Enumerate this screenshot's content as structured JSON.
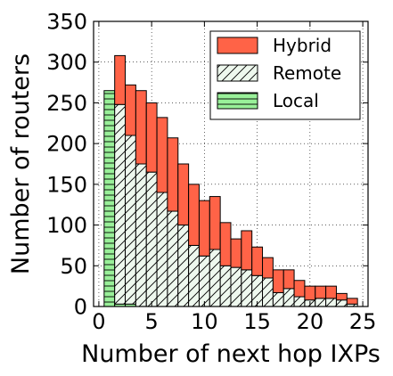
{
  "chart_data": {
    "type": "bar",
    "stacked": true,
    "xlabel": "Number of next hop IXPs",
    "ylabel": "Number of routers",
    "xlim": [
      -0.5,
      25.5
    ],
    "ylim": [
      0,
      350
    ],
    "xticks": [
      0,
      5,
      10,
      15,
      20,
      25
    ],
    "yticks": [
      0,
      50,
      100,
      150,
      200,
      250,
      300,
      350
    ],
    "grid": true,
    "legend_position": "top-right",
    "x": [
      1,
      2,
      3,
      4,
      5,
      6,
      7,
      8,
      9,
      10,
      11,
      12,
      13,
      14,
      15,
      16,
      17,
      18,
      19,
      20,
      21,
      22,
      23,
      24
    ],
    "series": [
      {
        "name": "Local",
        "color": "#99f099",
        "hatch": "horizontal",
        "values": [
          265,
          3,
          3,
          0,
          0,
          0,
          0,
          0,
          0,
          0,
          0,
          0,
          0,
          0,
          0,
          0,
          0,
          0,
          0,
          0,
          0,
          0,
          0,
          0
        ]
      },
      {
        "name": "Remote",
        "color": "#eef8ee",
        "hatch": "diagonal",
        "values": [
          0,
          245,
          207,
          175,
          165,
          140,
          117,
          100,
          75,
          62,
          70,
          50,
          48,
          45,
          38,
          35,
          17,
          22,
          12,
          8,
          10,
          10,
          8,
          3
        ]
      },
      {
        "name": "Hybrid",
        "color": "#ff6347",
        "hatch": "none",
        "values": [
          0,
          60,
          62,
          90,
          85,
          92,
          90,
          75,
          75,
          68,
          65,
          53,
          35,
          48,
          35,
          25,
          28,
          23,
          20,
          17,
          15,
          15,
          8,
          7
        ]
      }
    ],
    "legend_order": [
      "Hybrid",
      "Remote",
      "Local"
    ]
  }
}
